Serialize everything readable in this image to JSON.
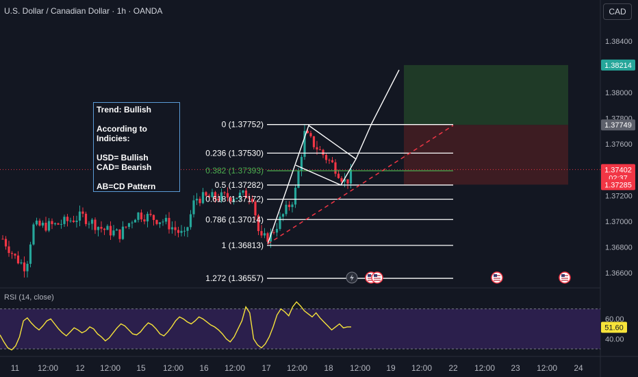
{
  "header": {
    "symbol_title": "U.S. Dollar / Canadian Dollar · 1h · OANDA",
    "currency_button": "CAD"
  },
  "note": {
    "text": "Trend: Bullish\n\nAccording to Indicies:\n\nUSD= Bullish\nCAD= Bearish\n\nAB=CD Pattern"
  },
  "chart_data": [
    {
      "type": "candlestick",
      "title": "U.S. Dollar / Canadian Dollar · 1h · OANDA",
      "price_axis": {
        "ticks": [
          "1.38400",
          "1.38000",
          "1.37800",
          "1.37600",
          "1.37200",
          "1.37000",
          "1.36800",
          "1.36600"
        ],
        "range": [
          1.3653,
          1.3849
        ]
      },
      "time_axis": {
        "labels": [
          "11",
          "12:00",
          "12",
          "12:00",
          "15",
          "12:00",
          "16",
          "12:00",
          "17",
          "12:00",
          "18",
          "12:00",
          "19",
          "12:00",
          "22",
          "12:00",
          "23",
          "12:00",
          "24"
        ]
      },
      "price_labels": [
        {
          "value": "1.38214",
          "color": "#26a69a"
        },
        {
          "value": "1.37749",
          "color": "#5d606b"
        },
        {
          "value": "1.37402",
          "sub": "02:37",
          "color": "#f23645"
        },
        {
          "value": "1.37285",
          "color": "#f23645"
        }
      ],
      "fibonacci": [
        {
          "ratio": "0",
          "label": "0 (1.37752)",
          "price": 1.37752
        },
        {
          "ratio": "0.236",
          "label": "0.236 (1.37530)",
          "price": 1.3753
        },
        {
          "ratio": "0.382",
          "label": "0.382 (1.37393)",
          "price": 1.37393
        },
        {
          "ratio": "0.5",
          "label": "0.5 (1.37282)",
          "price": 1.37282
        },
        {
          "ratio": "0.618",
          "label": "0.618 (1.37172)",
          "price": 1.37172
        },
        {
          "ratio": "0.786",
          "label": "0.786 (1.37014)",
          "price": 1.37014
        },
        {
          "ratio": "1",
          "label": "1 (1.36813)",
          "price": 1.36813
        },
        {
          "ratio": "1.272",
          "label": "1.272 (1.36557)",
          "price": 1.36557
        }
      ],
      "position": {
        "entry": 1.37749,
        "target": 1.38214,
        "stop": 1.37285,
        "current": 1.37402
      },
      "events": [
        "lightning",
        "us-flag",
        "us-flag",
        "us-flag",
        "us-flag"
      ],
      "colors": {
        "up": "#26a69a",
        "down": "#f23645",
        "fib_current": "#4caf50"
      }
    },
    {
      "type": "line",
      "title": "RSI (14, close)",
      "ylim": [
        15,
        85
      ],
      "ticks": [
        "60.00",
        "40.00"
      ],
      "current": "51.60",
      "color": "#f7e43a",
      "values": [
        44,
        37,
        31,
        29,
        33,
        42,
        58,
        61,
        56,
        52,
        49,
        53,
        58,
        60,
        55,
        50,
        46,
        43,
        47,
        51,
        49,
        46,
        48,
        52,
        50,
        45,
        42,
        38,
        41,
        46,
        51,
        55,
        53,
        49,
        45,
        44,
        47,
        52,
        56,
        54,
        50,
        45,
        43,
        47,
        52,
        58,
        62,
        60,
        57,
        55,
        58,
        62,
        60,
        57,
        54,
        52,
        49,
        45,
        40,
        37,
        42,
        50,
        58,
        72,
        66,
        40,
        34,
        31,
        35,
        42,
        52,
        64,
        70,
        67,
        63,
        72,
        77,
        73,
        68,
        65,
        62,
        66,
        61,
        57,
        53,
        49,
        52,
        55,
        51,
        52,
        52
      ]
    }
  ]
}
